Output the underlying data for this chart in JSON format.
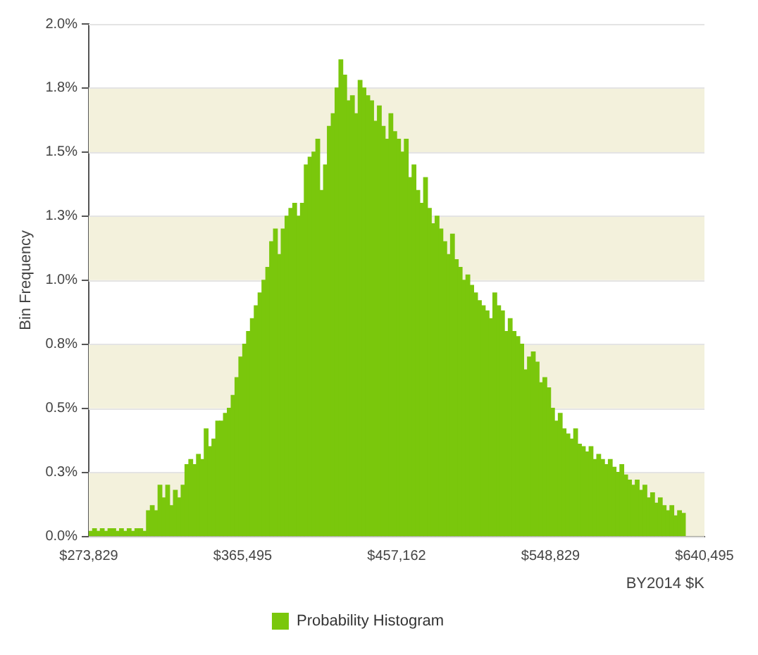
{
  "chart_data": {
    "type": "histogram",
    "xlabel": "BY2014 $K",
    "ylabel": "Bin Frequency",
    "bins": [
      273829,
      276121,
      278413,
      280705,
      282997,
      285289,
      287581,
      289873,
      292165,
      294457,
      296749,
      299041,
      301333,
      303625,
      305917,
      308209,
      310501,
      312793,
      315085,
      317377,
      319669,
      321961,
      324253,
      326545,
      328837,
      331129,
      333421,
      335713,
      338005,
      340297,
      342589,
      344881,
      347173,
      349465,
      351757,
      354049,
      356341,
      358633,
      360925,
      363217,
      365509,
      367801,
      370093,
      372385,
      374677,
      376969,
      379261,
      381553,
      383845,
      386137,
      388429,
      390721,
      393013,
      395305,
      397597,
      399889,
      402181,
      404473,
      406765,
      409057,
      411349,
      413641,
      415933,
      418225,
      420517,
      422809,
      425101,
      427393,
      429685,
      431977,
      434269,
      436561,
      438853,
      441145,
      443437,
      445729,
      448021,
      450313,
      452605,
      454897,
      457189,
      459481,
      461773,
      464065,
      466357,
      468649,
      470941,
      473233,
      475525,
      477817,
      480109,
      482401,
      484693,
      486985,
      489277,
      491569,
      493861,
      496153,
      498445,
      500737,
      503029,
      505321,
      507613,
      509905,
      512197,
      514489,
      516781,
      519073,
      521365,
      523657,
      525949,
      528241,
      530533,
      532825,
      535117,
      537409,
      539701,
      541993,
      544285,
      546577,
      548869,
      551161,
      553453,
      555745,
      558037,
      560329,
      562621,
      564913,
      567205,
      569497,
      571789,
      574081,
      576373,
      578665,
      580957,
      583249,
      585541,
      587833,
      590125,
      592417,
      594709,
      597001,
      599293,
      601585,
      603877,
      606169,
      608461,
      610753,
      613045,
      615337,
      617629,
      619921,
      622213,
      624505,
      626797,
      629089
    ],
    "series": [
      {
        "name": "Probability Histogram",
        "color": "#7ac70c",
        "values": [
          0.02,
          0.03,
          0.02,
          0.03,
          0.02,
          0.03,
          0.03,
          0.02,
          0.03,
          0.02,
          0.03,
          0.02,
          0.03,
          0.03,
          0.02,
          0.1,
          0.12,
          0.1,
          0.2,
          0.15,
          0.2,
          0.12,
          0.18,
          0.15,
          0.2,
          0.28,
          0.3,
          0.28,
          0.32,
          0.3,
          0.42,
          0.35,
          0.38,
          0.45,
          0.45,
          0.48,
          0.5,
          0.55,
          0.62,
          0.7,
          0.75,
          0.8,
          0.85,
          0.9,
          0.95,
          1.0,
          1.05,
          1.15,
          1.2,
          1.1,
          1.2,
          1.25,
          1.28,
          1.3,
          1.25,
          1.3,
          1.45,
          1.48,
          1.5,
          1.55,
          1.35,
          1.45,
          1.6,
          1.65,
          1.75,
          1.86,
          1.8,
          1.7,
          1.72,
          1.65,
          1.78,
          1.75,
          1.72,
          1.7,
          1.62,
          1.68,
          1.6,
          1.55,
          1.65,
          1.58,
          1.55,
          1.5,
          1.55,
          1.4,
          1.45,
          1.35,
          1.3,
          1.4,
          1.28,
          1.22,
          1.25,
          1.2,
          1.15,
          1.1,
          1.18,
          1.08,
          1.05,
          1.0,
          1.02,
          0.98,
          0.95,
          0.92,
          0.9,
          0.88,
          0.85,
          0.95,
          0.9,
          0.88,
          0.8,
          0.85,
          0.8,
          0.78,
          0.75,
          0.65,
          0.7,
          0.72,
          0.68,
          0.6,
          0.62,
          0.58,
          0.5,
          0.45,
          0.48,
          0.42,
          0.4,
          0.38,
          0.42,
          0.36,
          0.35,
          0.33,
          0.35,
          0.3,
          0.32,
          0.3,
          0.28,
          0.3,
          0.27,
          0.25,
          0.28,
          0.24,
          0.22,
          0.2,
          0.22,
          0.18,
          0.2,
          0.15,
          0.17,
          0.13,
          0.15,
          0.12,
          0.1,
          0.12,
          0.08,
          0.1,
          0.09
        ]
      }
    ],
    "xlim": [
      273829,
      640495
    ],
    "xticks": [
      {
        "value": 273829,
        "label": "$273,829"
      },
      {
        "value": 365495,
        "label": "$365,495"
      },
      {
        "value": 457162,
        "label": "$457,162"
      },
      {
        "value": 548829,
        "label": "$548,829"
      },
      {
        "value": 640495,
        "label": "$640,495"
      }
    ],
    "ylim": [
      0,
      2
    ],
    "yticks": [
      {
        "value": 0,
        "label": "0.0%"
      },
      {
        "value": 0.25,
        "label": "0.3%"
      },
      {
        "value": 0.5,
        "label": "0.5%"
      },
      {
        "value": 0.75,
        "label": "0.8%"
      },
      {
        "value": 1,
        "label": "1.0%"
      },
      {
        "value": 1.25,
        "label": "1.3%"
      },
      {
        "value": 1.5,
        "label": "1.5%"
      },
      {
        "value": 1.75,
        "label": "1.8%"
      },
      {
        "value": 2,
        "label": "2.0%"
      }
    ],
    "grid": "y",
    "legend": "bottom"
  }
}
